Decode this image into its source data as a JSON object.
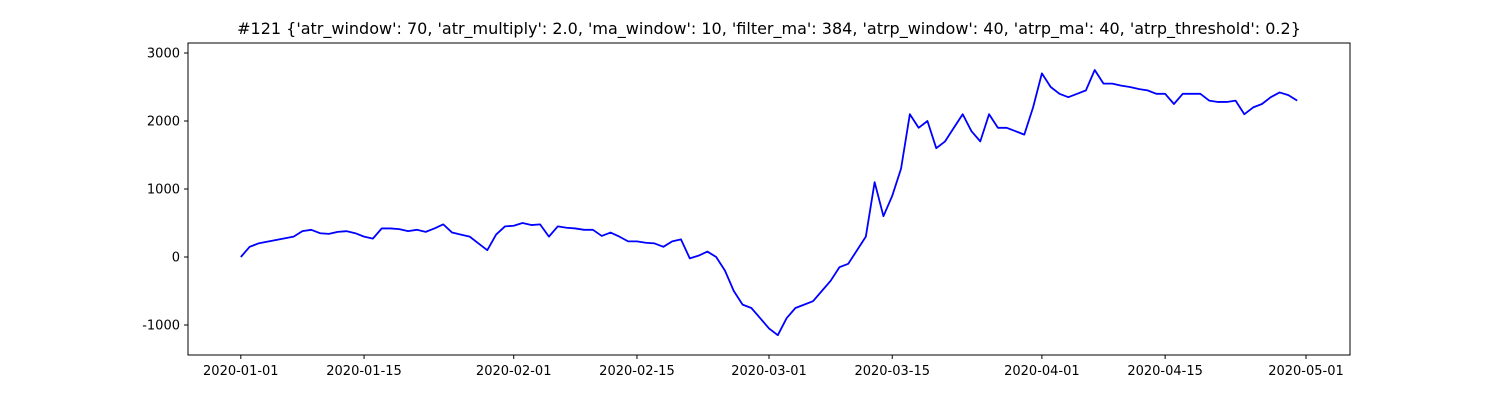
{
  "chart_data": {
    "type": "line",
    "title": "#121 {'atr_window': 70, 'atr_multiply': 2.0, 'ma_window': 10, 'filter_ma': 384, 'atrp_window': 40, 'atrp_ma': 40, 'atrp_threshold': 0.2}",
    "x": [
      "2020-01-01",
      "2020-01-02",
      "2020-01-03",
      "2020-01-05",
      "2020-01-07",
      "2020-01-08",
      "2020-01-09",
      "2020-01-10",
      "2020-01-11",
      "2020-01-12",
      "2020-01-13",
      "2020-01-14",
      "2020-01-15",
      "2020-01-16",
      "2020-01-17",
      "2020-01-18",
      "2020-01-19",
      "2020-01-20",
      "2020-01-21",
      "2020-01-22",
      "2020-01-23",
      "2020-01-24",
      "2020-01-25",
      "2020-01-26",
      "2020-01-27",
      "2020-01-28",
      "2020-01-29",
      "2020-01-30",
      "2020-01-31",
      "2020-02-01",
      "2020-02-02",
      "2020-02-03",
      "2020-02-04",
      "2020-02-05",
      "2020-02-06",
      "2020-02-07",
      "2020-02-08",
      "2020-02-09",
      "2020-02-10",
      "2020-02-11",
      "2020-02-12",
      "2020-02-13",
      "2020-02-14",
      "2020-02-15",
      "2020-02-16",
      "2020-02-17",
      "2020-02-18",
      "2020-02-19",
      "2020-02-20",
      "2020-02-21",
      "2020-02-22",
      "2020-02-23",
      "2020-02-24",
      "2020-02-25",
      "2020-02-26",
      "2020-02-27",
      "2020-02-28",
      "2020-02-29",
      "2020-03-01",
      "2020-03-02",
      "2020-03-03",
      "2020-03-04",
      "2020-03-05",
      "2020-03-06",
      "2020-03-07",
      "2020-03-08",
      "2020-03-09",
      "2020-03-10",
      "2020-03-11",
      "2020-03-12",
      "2020-03-13",
      "2020-03-14",
      "2020-03-15",
      "2020-03-16",
      "2020-03-17",
      "2020-03-18",
      "2020-03-19",
      "2020-03-20",
      "2020-03-21",
      "2020-03-22",
      "2020-03-23",
      "2020-03-24",
      "2020-03-25",
      "2020-03-26",
      "2020-03-27",
      "2020-03-28",
      "2020-03-29",
      "2020-03-30",
      "2020-03-31",
      "2020-04-01",
      "2020-04-02",
      "2020-04-03",
      "2020-04-04",
      "2020-04-05",
      "2020-04-06",
      "2020-04-07",
      "2020-04-08",
      "2020-04-09",
      "2020-04-10",
      "2020-04-11",
      "2020-04-12",
      "2020-04-13",
      "2020-04-14",
      "2020-04-15",
      "2020-04-16",
      "2020-04-17",
      "2020-04-18",
      "2020-04-19",
      "2020-04-20",
      "2020-04-21",
      "2020-04-22",
      "2020-04-23",
      "2020-04-24",
      "2020-04-25",
      "2020-04-26",
      "2020-04-27",
      "2020-04-28",
      "2020-04-29",
      "2020-04-30"
    ],
    "series": [
      {
        "color": "#0000ff",
        "values": [
          0,
          150,
          200,
          250,
          300,
          380,
          400,
          350,
          340,
          370,
          380,
          350,
          300,
          270,
          420,
          420,
          410,
          380,
          400,
          370,
          420,
          480,
          360,
          330,
          300,
          200,
          100,
          330,
          450,
          460,
          500,
          470,
          480,
          300,
          450,
          430,
          420,
          400,
          400,
          310,
          360,
          300,
          230,
          230,
          210,
          200,
          150,
          230,
          260,
          -20,
          20,
          80,
          0,
          -200,
          -500,
          -700,
          -750,
          -900,
          -1050,
          -1150,
          -900,
          -750,
          -700,
          -650,
          -500,
          -350,
          -150,
          -100,
          100,
          300,
          1100,
          600,
          900,
          1300,
          2100,
          1900,
          2000,
          1600,
          1700,
          1900,
          2100,
          1850,
          1700,
          2100,
          1900,
          1900,
          1850,
          1800,
          2200,
          2700,
          2500,
          2400,
          2350,
          2400,
          2450,
          2750,
          2550,
          2550,
          2520,
          2500,
          2470,
          2450,
          2400,
          2400,
          2250,
          2400,
          2400,
          2400,
          2300,
          2280,
          2280,
          2300,
          2100,
          2200,
          2250,
          2350,
          2420,
          2380,
          2300
        ]
      }
    ],
    "xlim": [
      "2019-12-26",
      "2020-05-06"
    ],
    "xticks": [
      "2020-01-01",
      "2020-01-15",
      "2020-02-01",
      "2020-02-15",
      "2020-03-01",
      "2020-03-15",
      "2020-04-01",
      "2020-04-15",
      "2020-05-01"
    ],
    "ylim": [
      -1441,
      3147
    ],
    "yticks": [
      -1000,
      0,
      1000,
      2000,
      3000
    ],
    "grid": false
  }
}
